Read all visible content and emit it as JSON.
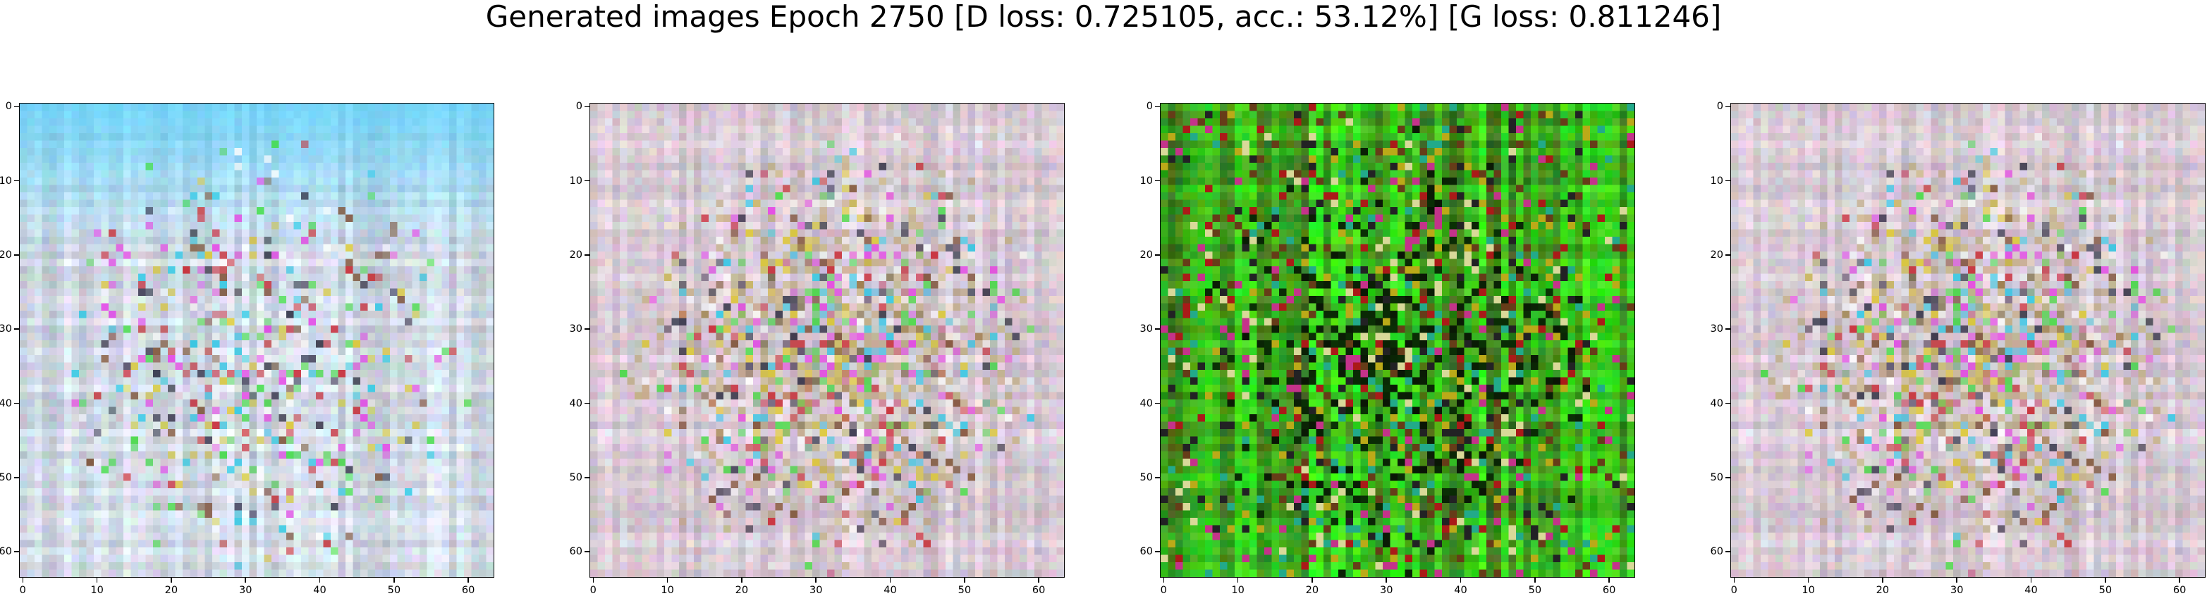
{
  "figure": {
    "title": "Generated images Epoch 2750 [D loss: 0.725105, acc.: 53.12%] [G loss: 0.811246]"
  },
  "image_size": 64,
  "axes": {
    "x_ticks": [
      0,
      10,
      20,
      30,
      40,
      50,
      60
    ],
    "y_ticks": [
      0,
      10,
      20,
      30,
      40,
      50,
      60
    ]
  },
  "panels": [
    {
      "name": "generated-image-1",
      "palette": "pastel-cyan",
      "base_color": "#dfe9f6",
      "accent_color": "#33ccff"
    },
    {
      "name": "generated-image-2",
      "palette": "pastel-brown",
      "base_color": "#e6d6e2",
      "accent_color": "#b5a05a"
    },
    {
      "name": "generated-image-3",
      "palette": "green-dark",
      "base_color": "#2f8a1a",
      "accent_color": "#1fd21f"
    },
    {
      "name": "generated-image-4",
      "palette": "pastel-brown",
      "base_color": "#e6d6e2",
      "accent_color": "#b5a05a"
    }
  ]
}
